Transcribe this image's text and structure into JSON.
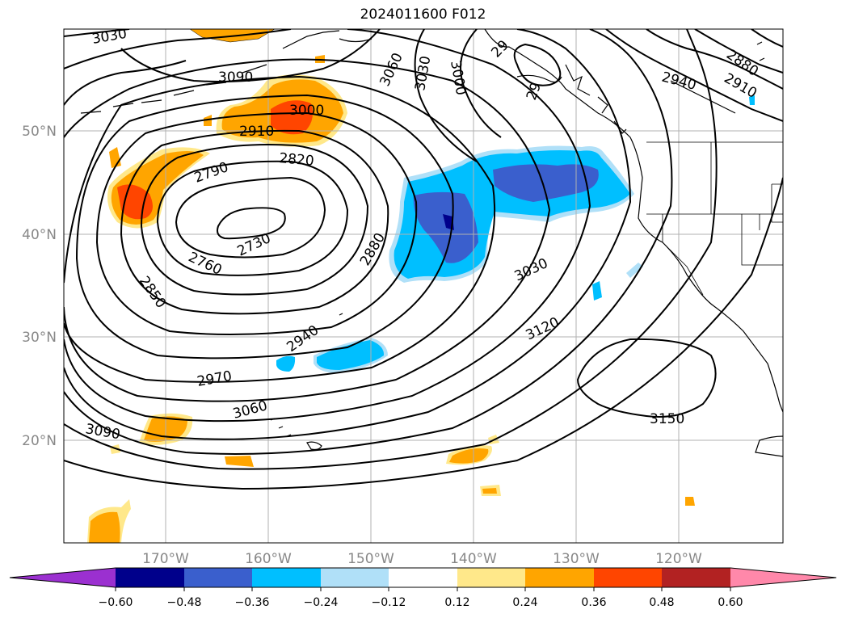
{
  "title": "2024011600 F012",
  "axes": {
    "lat_labels": [
      "50°N",
      "40°N",
      "30°N",
      "20°N"
    ],
    "lon_labels": [
      "170°W",
      "160°W",
      "150°W",
      "140°W",
      "130°W",
      "120°W"
    ]
  },
  "contour_labels": [
    "3030",
    "3090",
    "3060",
    "3030",
    "3000",
    "2940",
    "2880",
    "2910",
    "3000",
    "2910",
    "2820",
    "2790",
    "2730",
    "2760",
    "2850",
    "2880",
    "3030",
    "2940",
    "2970",
    "3060",
    "3090",
    "3120",
    "3150",
    "29",
    "29"
  ],
  "colorbar": {
    "ticks": [
      "−0.60",
      "−0.48",
      "−0.36",
      "−0.24",
      "−0.12",
      "0.12",
      "0.24",
      "0.36",
      "0.48",
      "0.60"
    ],
    "colors": [
      "#9b30d0",
      "#00008b",
      "#3a5fcd",
      "#00bfff",
      "#b0e0f8",
      "#ffffff",
      "#ffe88a",
      "#ffa500",
      "#ff4500",
      "#b22222",
      "#ff88aa"
    ]
  }
}
